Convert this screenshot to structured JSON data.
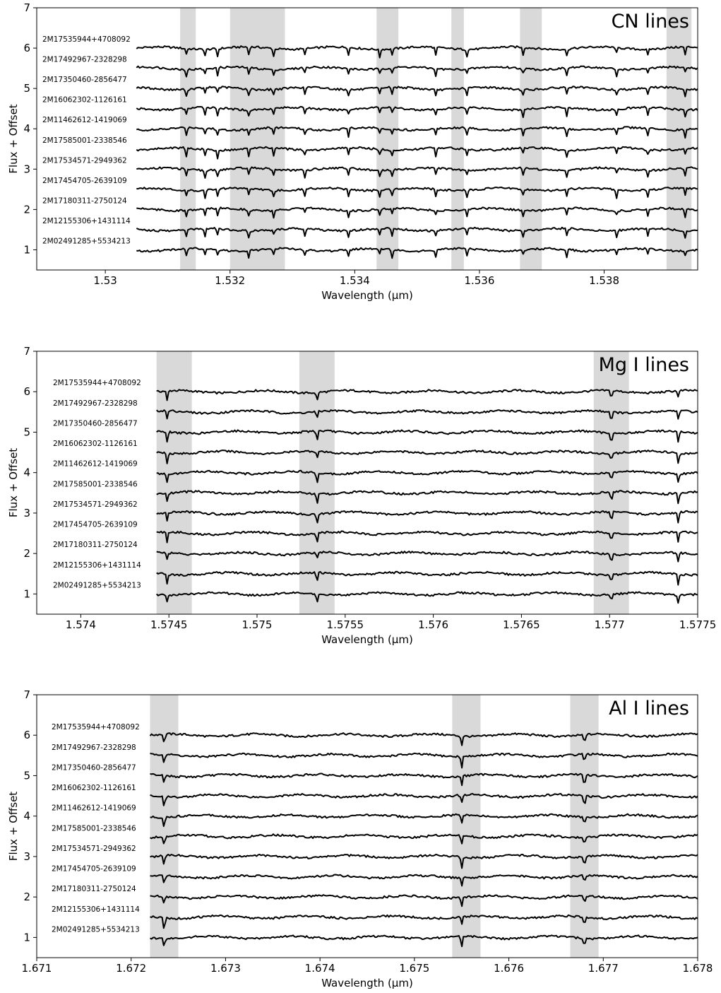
{
  "chart_data": [
    {
      "type": "line",
      "title": "CN lines",
      "xlabel": "Wavelength (μm)",
      "ylabel": "Flux + Offset",
      "xlim": [
        1.5289,
        1.5395
      ],
      "ylim": [
        0.5,
        7
      ],
      "x_ticks": [
        1.53,
        1.532,
        1.534,
        1.536,
        1.538
      ],
      "x_tick_labels": [
        "1.53",
        "1.532",
        "1.534",
        "1.536",
        "1.538"
      ],
      "y_ticks": [
        1,
        2,
        3,
        4,
        5,
        6,
        7
      ],
      "x_range": [
        1.5305,
        1.5395
      ],
      "shaded_regions": [
        [
          1.5312,
          1.53145
        ],
        [
          1.532,
          1.53288
        ],
        [
          1.53435,
          1.5347
        ],
        [
          1.53555,
          1.53575
        ],
        [
          1.53665,
          1.537
        ],
        [
          1.539,
          1.5394
        ]
      ],
      "line_centers": [
        1.5313,
        1.5316,
        1.5318,
        1.5323,
        1.5327,
        1.5332,
        1.5339,
        1.5344,
        1.5346,
        1.5353,
        1.5358,
        1.5367,
        1.5374,
        1.5382,
        1.5387,
        1.5393
      ],
      "line_depth": 0.2,
      "series": [
        {
          "name": "2M17535944+4708092",
          "offset": 6.0
        },
        {
          "name": "2M17492967-2328298",
          "offset": 5.5
        },
        {
          "name": "2M17350460-2856477",
          "offset": 5.0
        },
        {
          "name": "2M16062302-1126161",
          "offset": 4.5
        },
        {
          "name": "2M11462612-1419069",
          "offset": 4.0
        },
        {
          "name": "2M17585001-2338546",
          "offset": 3.5
        },
        {
          "name": "2M17534571-2949362",
          "offset": 3.0
        },
        {
          "name": "2M17454705-2639109",
          "offset": 2.5
        },
        {
          "name": "2M17180311-2750124",
          "offset": 2.0
        },
        {
          "name": "2M12155306+1431114",
          "offset": 1.5
        },
        {
          "name": "2M02491285+5534213",
          "offset": 1.0
        }
      ]
    },
    {
      "type": "line",
      "title": "Mg I lines",
      "xlabel": "Wavelength (μm)",
      "ylabel": "Flux + Offset",
      "xlim": [
        1.57375,
        1.5775
      ],
      "ylim": [
        0.5,
        7
      ],
      "x_ticks": [
        1.574,
        1.5745,
        1.575,
        1.5755,
        1.576,
        1.5765,
        1.577,
        1.5775
      ],
      "x_tick_labels": [
        "1.574",
        "1.5745",
        "1.575",
        "1.5755",
        "1.576",
        "1.5765",
        "1.577",
        "1.5775"
      ],
      "y_ticks": [
        1,
        2,
        3,
        4,
        5,
        6,
        7
      ],
      "x_range": [
        1.57443,
        1.5775
      ],
      "shaded_regions": [
        [
          1.57443,
          1.57463
        ],
        [
          1.57524,
          1.57544
        ],
        [
          1.57691,
          1.57711
        ],
        [
          1.57752,
          1.57752
        ]
      ],
      "line_centers": [
        1.57449,
        1.57534,
        1.57701,
        1.57739
      ],
      "line_depth": 0.28,
      "series": [
        {
          "name": "2M17535944+4708092",
          "offset": 6.0
        },
        {
          "name": "2M17492967-2328298",
          "offset": 5.5
        },
        {
          "name": "2M17350460-2856477",
          "offset": 5.0
        },
        {
          "name": "2M16062302-1126161",
          "offset": 4.5
        },
        {
          "name": "2M11462612-1419069",
          "offset": 4.0
        },
        {
          "name": "2M17585001-2338546",
          "offset": 3.5
        },
        {
          "name": "2M17534571-2949362",
          "offset": 3.0
        },
        {
          "name": "2M17454705-2639109",
          "offset": 2.5
        },
        {
          "name": "2M17180311-2750124",
          "offset": 2.0
        },
        {
          "name": "2M12155306+1431114",
          "offset": 1.5
        },
        {
          "name": "2M02491285+5534213",
          "offset": 1.0
        }
      ]
    },
    {
      "type": "line",
      "title": "Al I lines",
      "xlabel": "Wavelength (μm)",
      "ylabel": "Flux + Offset",
      "xlim": [
        1.671,
        1.678
      ],
      "ylim": [
        0.5,
        7
      ],
      "x_ticks": [
        1.671,
        1.672,
        1.673,
        1.674,
        1.675,
        1.676,
        1.677,
        1.678
      ],
      "x_tick_labels": [
        "1.671",
        "1.672",
        "1.673",
        "1.674",
        "1.675",
        "1.676",
        "1.677",
        "1.678"
      ],
      "y_ticks": [
        1,
        2,
        3,
        4,
        5,
        6,
        7
      ],
      "x_range": [
        1.6722,
        1.678
      ],
      "shaded_regions": [
        [
          1.6722,
          1.6725
        ],
        [
          1.6754,
          1.6757
        ],
        [
          1.67665,
          1.67695
        ]
      ],
      "line_centers": [
        1.67235,
        1.6755,
        1.6768
      ],
      "line_depth": 0.3,
      "series": [
        {
          "name": "2M17535944+4708092",
          "offset": 6.0
        },
        {
          "name": "2M17492967-2328298",
          "offset": 5.5
        },
        {
          "name": "2M17350460-2856477",
          "offset": 5.0
        },
        {
          "name": "2M16062302-1126161",
          "offset": 4.5
        },
        {
          "name": "2M11462612-1419069",
          "offset": 4.0
        },
        {
          "name": "2M17585001-2338546",
          "offset": 3.5
        },
        {
          "name": "2M17534571-2949362",
          "offset": 3.0
        },
        {
          "name": "2M17454705-2639109",
          "offset": 2.5
        },
        {
          "name": "2M17180311-2750124",
          "offset": 2.0
        },
        {
          "name": "2M12155306+1431114",
          "offset": 1.5
        },
        {
          "name": "2M02491285+5534213",
          "offset": 1.0
        }
      ]
    }
  ]
}
